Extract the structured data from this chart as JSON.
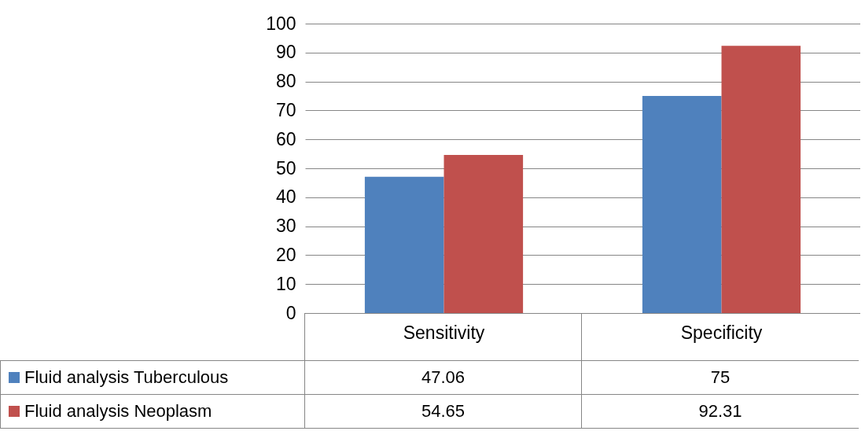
{
  "chart_data": {
    "type": "bar",
    "categories": [
      "Sensitivity",
      "Specificity"
    ],
    "series": [
      {
        "name": "Fluid analysis Tuberculous",
        "color": "#4f81bd",
        "values": [
          47.06,
          75
        ]
      },
      {
        "name": "Fluid analysis Neoplasm",
        "color": "#c0504d",
        "values": [
          54.65,
          92.31
        ]
      }
    ],
    "ylim": [
      0,
      100
    ],
    "yticks": [
      0,
      10,
      20,
      30,
      40,
      50,
      60,
      70,
      80,
      90,
      100
    ],
    "grid": "y",
    "legend": "bottom left",
    "data_labels": true
  }
}
